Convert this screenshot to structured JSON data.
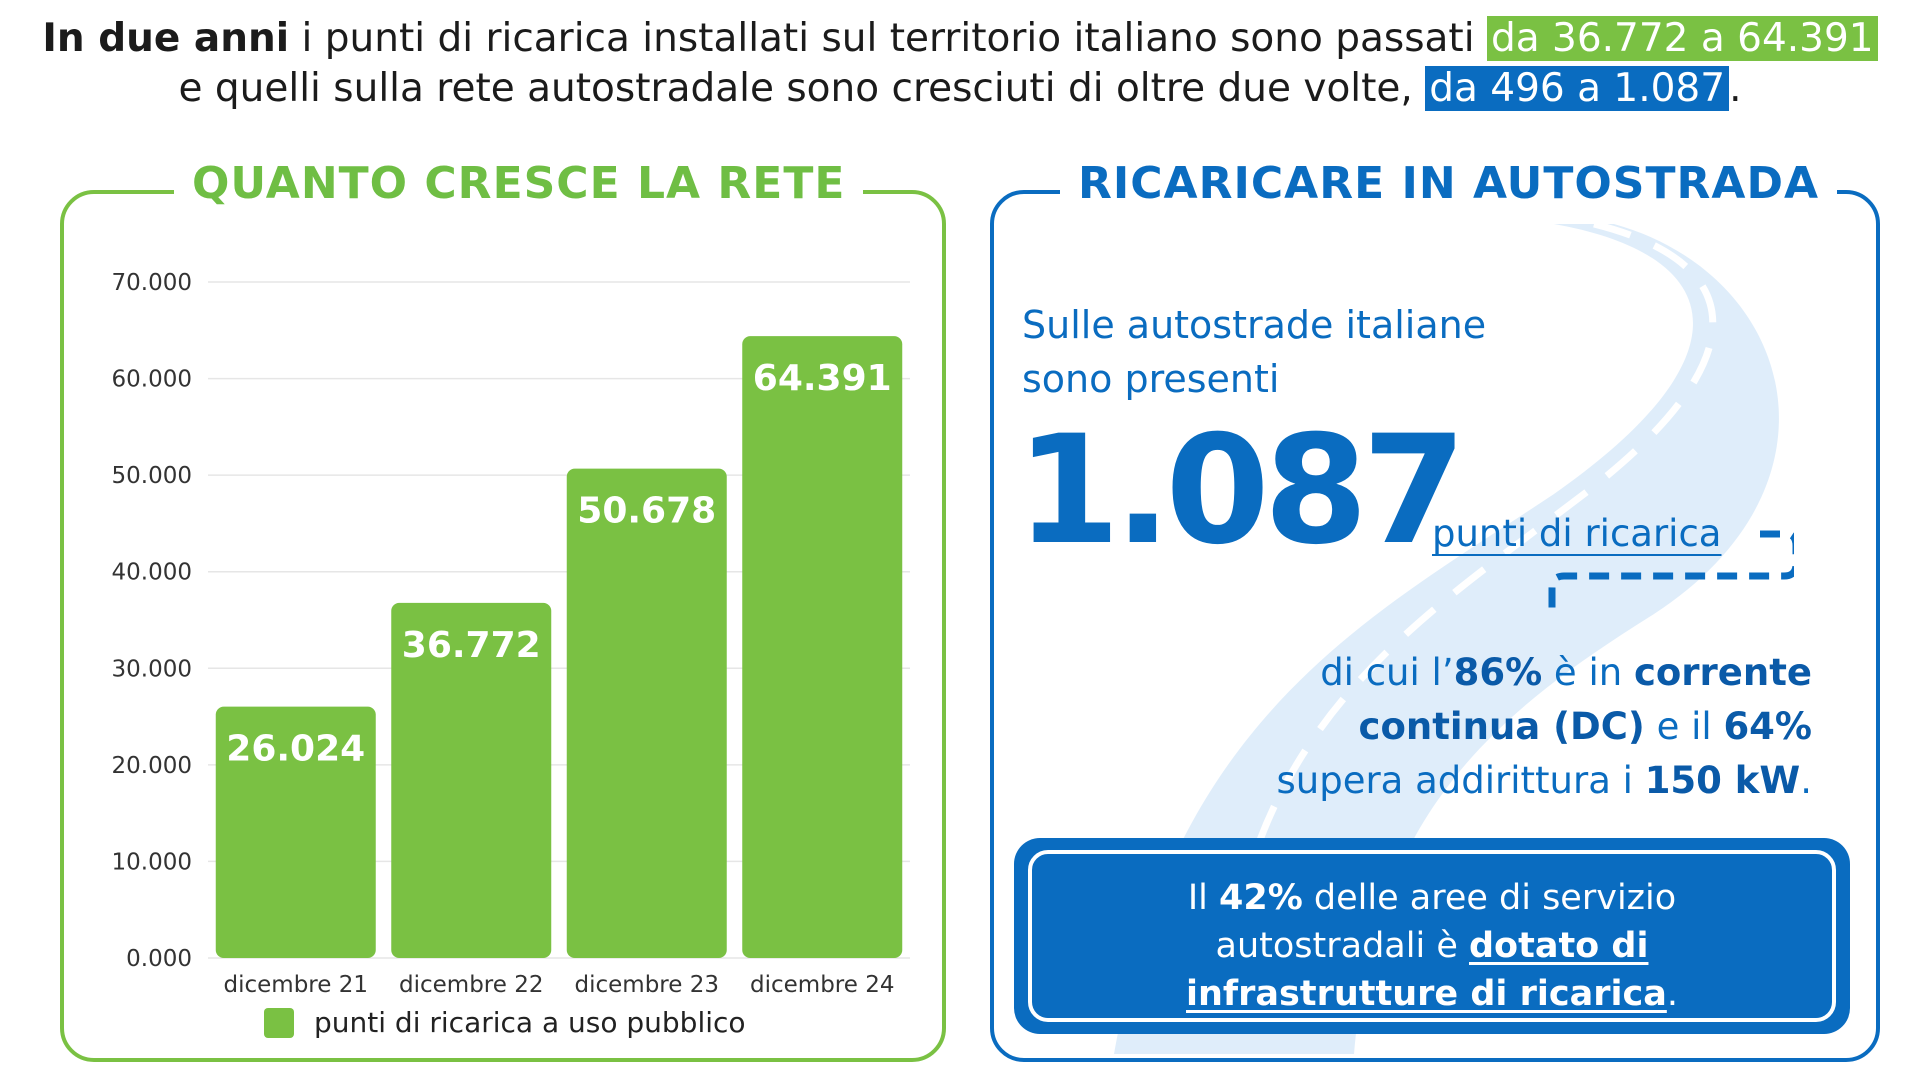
{
  "headline": {
    "part1_bold": "In due anni",
    "part1": " i punti di ricarica installati sul territorio italiano sono passati ",
    "highlight1": "da 36.772 a 64.391",
    "part2": "e quelli sulla rete autostradale sono cresciuti di oltre due volte, ",
    "highlight2": "da 496 a 1.087",
    "part2_end": "."
  },
  "left_card": {
    "title": "QUANTO CRESCE LA RETE",
    "legend_label": "punti di ricarica a uso pubblico"
  },
  "right_card": {
    "title": "RICARICARE IN AUTOSTRADA",
    "intro_line1": "Sulle autostrade italiane",
    "intro_line2": "sono presenti",
    "big_number": "1.087",
    "points_label": "punti di ricarica",
    "detail": {
      "t1": "di cui l’",
      "b1": "86%",
      "t2": " è in ",
      "b2": "corrente",
      "b3": "continua (DC)",
      "t3": " e il ",
      "b4": "64%",
      "t4": "supera addirittura i ",
      "b5": "150 kW",
      "t5": "."
    },
    "callout": {
      "t1": "Il ",
      "b1": "42%",
      "t2": " delle aree di servizio",
      "t3": "autostradali è ",
      "u1": "dotato di",
      "u2": "infrastrutture di ricarica",
      "t4": "."
    }
  },
  "colors": {
    "green": "#7ac143",
    "blue": "#0a6cc0",
    "grid": "#e6e6e6"
  },
  "chart_data": {
    "type": "bar",
    "categories": [
      "dicembre 21",
      "dicembre 22",
      "dicembre 23",
      "dicembre 24"
    ],
    "series": [
      {
        "name": "punti di ricarica a uso pubblico",
        "values": [
          26024,
          36772,
          50678,
          64391
        ]
      }
    ],
    "value_labels": [
      "26.024",
      "36.772",
      "50.678",
      "64.391"
    ],
    "y_ticks": [
      "0.000",
      "10.000",
      "20.000",
      "30.000",
      "40.000",
      "50.000",
      "60.000",
      "70.000"
    ],
    "ylim": [
      0,
      70000
    ],
    "title": "QUANTO CRESCE LA RETE",
    "xlabel": "",
    "ylabel": "",
    "grid": true,
    "legend": "bottom"
  }
}
